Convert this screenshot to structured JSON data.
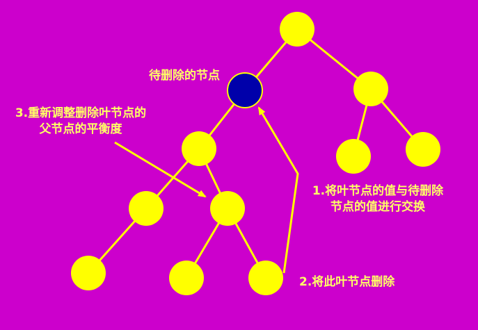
{
  "colors": {
    "background": "#CC00CC",
    "node_fill": "#FFFF00",
    "target_fill": "#0000AA",
    "target_stroke": "#FFFF00",
    "edge": "#FFFF00",
    "label_text": "#FFFF66"
  },
  "labels": {
    "target_node": "待删除的节点",
    "step3_line1": "3.重新调整删除叶节点的",
    "step3_line2": "父节点的平衡度",
    "step1_line1": "1.将叶节点的值与待删除",
    "step1_line2": "节点的值进行交换",
    "step2": "2.将此叶节点删除"
  },
  "tree": {
    "nodes": [
      {
        "id": "root"
      },
      {
        "id": "target",
        "highlight": true
      },
      {
        "id": "right"
      },
      {
        "id": "right-left"
      },
      {
        "id": "right-right"
      },
      {
        "id": "mid"
      },
      {
        "id": "mid-left"
      },
      {
        "id": "mid-right"
      },
      {
        "id": "mid-left-left"
      },
      {
        "id": "mid-right-left"
      },
      {
        "id": "mid-right-right"
      }
    ],
    "edges": [
      [
        "root",
        "target"
      ],
      [
        "root",
        "right"
      ],
      [
        "right",
        "right-left"
      ],
      [
        "right",
        "right-right"
      ],
      [
        "target",
        "mid"
      ],
      [
        "mid",
        "mid-left"
      ],
      [
        "mid",
        "mid-right"
      ],
      [
        "mid-left",
        "mid-left-left"
      ],
      [
        "mid-right",
        "mid-right-left"
      ],
      [
        "mid-right",
        "mid-right-right"
      ]
    ]
  }
}
